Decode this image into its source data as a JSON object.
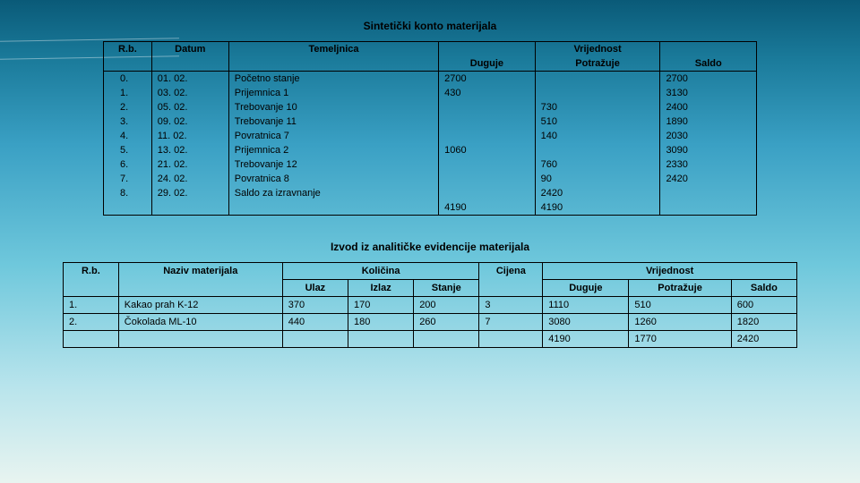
{
  "title1": "Sintetički konto materijala",
  "title2": "Izvod iz analitičke evidencije materijala",
  "table1": {
    "headers": {
      "rb": "R.b.",
      "datum": "Datum",
      "temeljnica": "Temeljnica",
      "vrijednost": "Vrijednost",
      "duguje": "Duguje",
      "potrazuje": "Potražuje",
      "saldo": "Saldo"
    },
    "rows": [
      {
        "rb": "0.",
        "dat": "01. 02.",
        "tem": "Početno stanje",
        "dug": "2700",
        "pot": "",
        "sal": "2700"
      },
      {
        "rb": "1.",
        "dat": "03. 02.",
        "tem": "Prijemnica 1",
        "dug": "430",
        "pot": "",
        "sal": "3130"
      },
      {
        "rb": "2.",
        "dat": "05. 02.",
        "tem": "Trebovanje 10",
        "dug": "",
        "pot": "730",
        "sal": "2400"
      },
      {
        "rb": "3.",
        "dat": "09. 02.",
        "tem": "Trebovanje 11",
        "dug": "",
        "pot": "510",
        "sal": "1890"
      },
      {
        "rb": "4.",
        "dat": "11. 02.",
        "tem": "Povratnica 7",
        "dug": "",
        "pot": "140",
        "sal": "2030"
      },
      {
        "rb": "5.",
        "dat": "13. 02.",
        "tem": "Prijemnica 2",
        "dug": "1060",
        "pot": "",
        "sal": "3090"
      },
      {
        "rb": "6.",
        "dat": "21. 02.",
        "tem": "Trebovanje 12",
        "dug": "",
        "pot": "760",
        "sal": "2330"
      },
      {
        "rb": "7.",
        "dat": "24. 02.",
        "tem": "Povratnica 8",
        "dug": "",
        "pot": "90",
        "sal": "2420"
      },
      {
        "rb": "8.",
        "dat": "29. 02.",
        "tem": "Saldo za izravnanje",
        "dug": "",
        "pot": "2420",
        "sal": ""
      },
      {
        "rb": "",
        "dat": "",
        "tem": "",
        "dug": "4190",
        "pot": "4190",
        "sal": ""
      }
    ]
  },
  "table2": {
    "headers": {
      "rb": "R.b.",
      "naziv": "Naziv materijala",
      "kolicina": "Količina",
      "ulaz": "Ulaz",
      "izlaz": "Izlaz",
      "stanje": "Stanje",
      "cijena": "Cijena",
      "vrijednost": "Vrijednost",
      "duguje": "Duguje",
      "potrazuje": "Potražuje",
      "saldo": "Saldo"
    },
    "rows": [
      {
        "rb": "1.",
        "naz": "Kakao prah K-12",
        "ul": "370",
        "iz": "170",
        "st": "200",
        "ci": "3",
        "du": "1110",
        "po": "510",
        "sa": "600"
      },
      {
        "rb": "2.",
        "naz": "Čokolada ML-10",
        "ul": "440",
        "iz": "180",
        "st": "260",
        "ci": "7",
        "du": "3080",
        "po": "1260",
        "sa": "1820"
      },
      {
        "rb": "",
        "naz": "",
        "ul": "",
        "iz": "",
        "st": "",
        "ci": "",
        "du": "4190",
        "po": "1770",
        "sa": "2420"
      }
    ]
  }
}
